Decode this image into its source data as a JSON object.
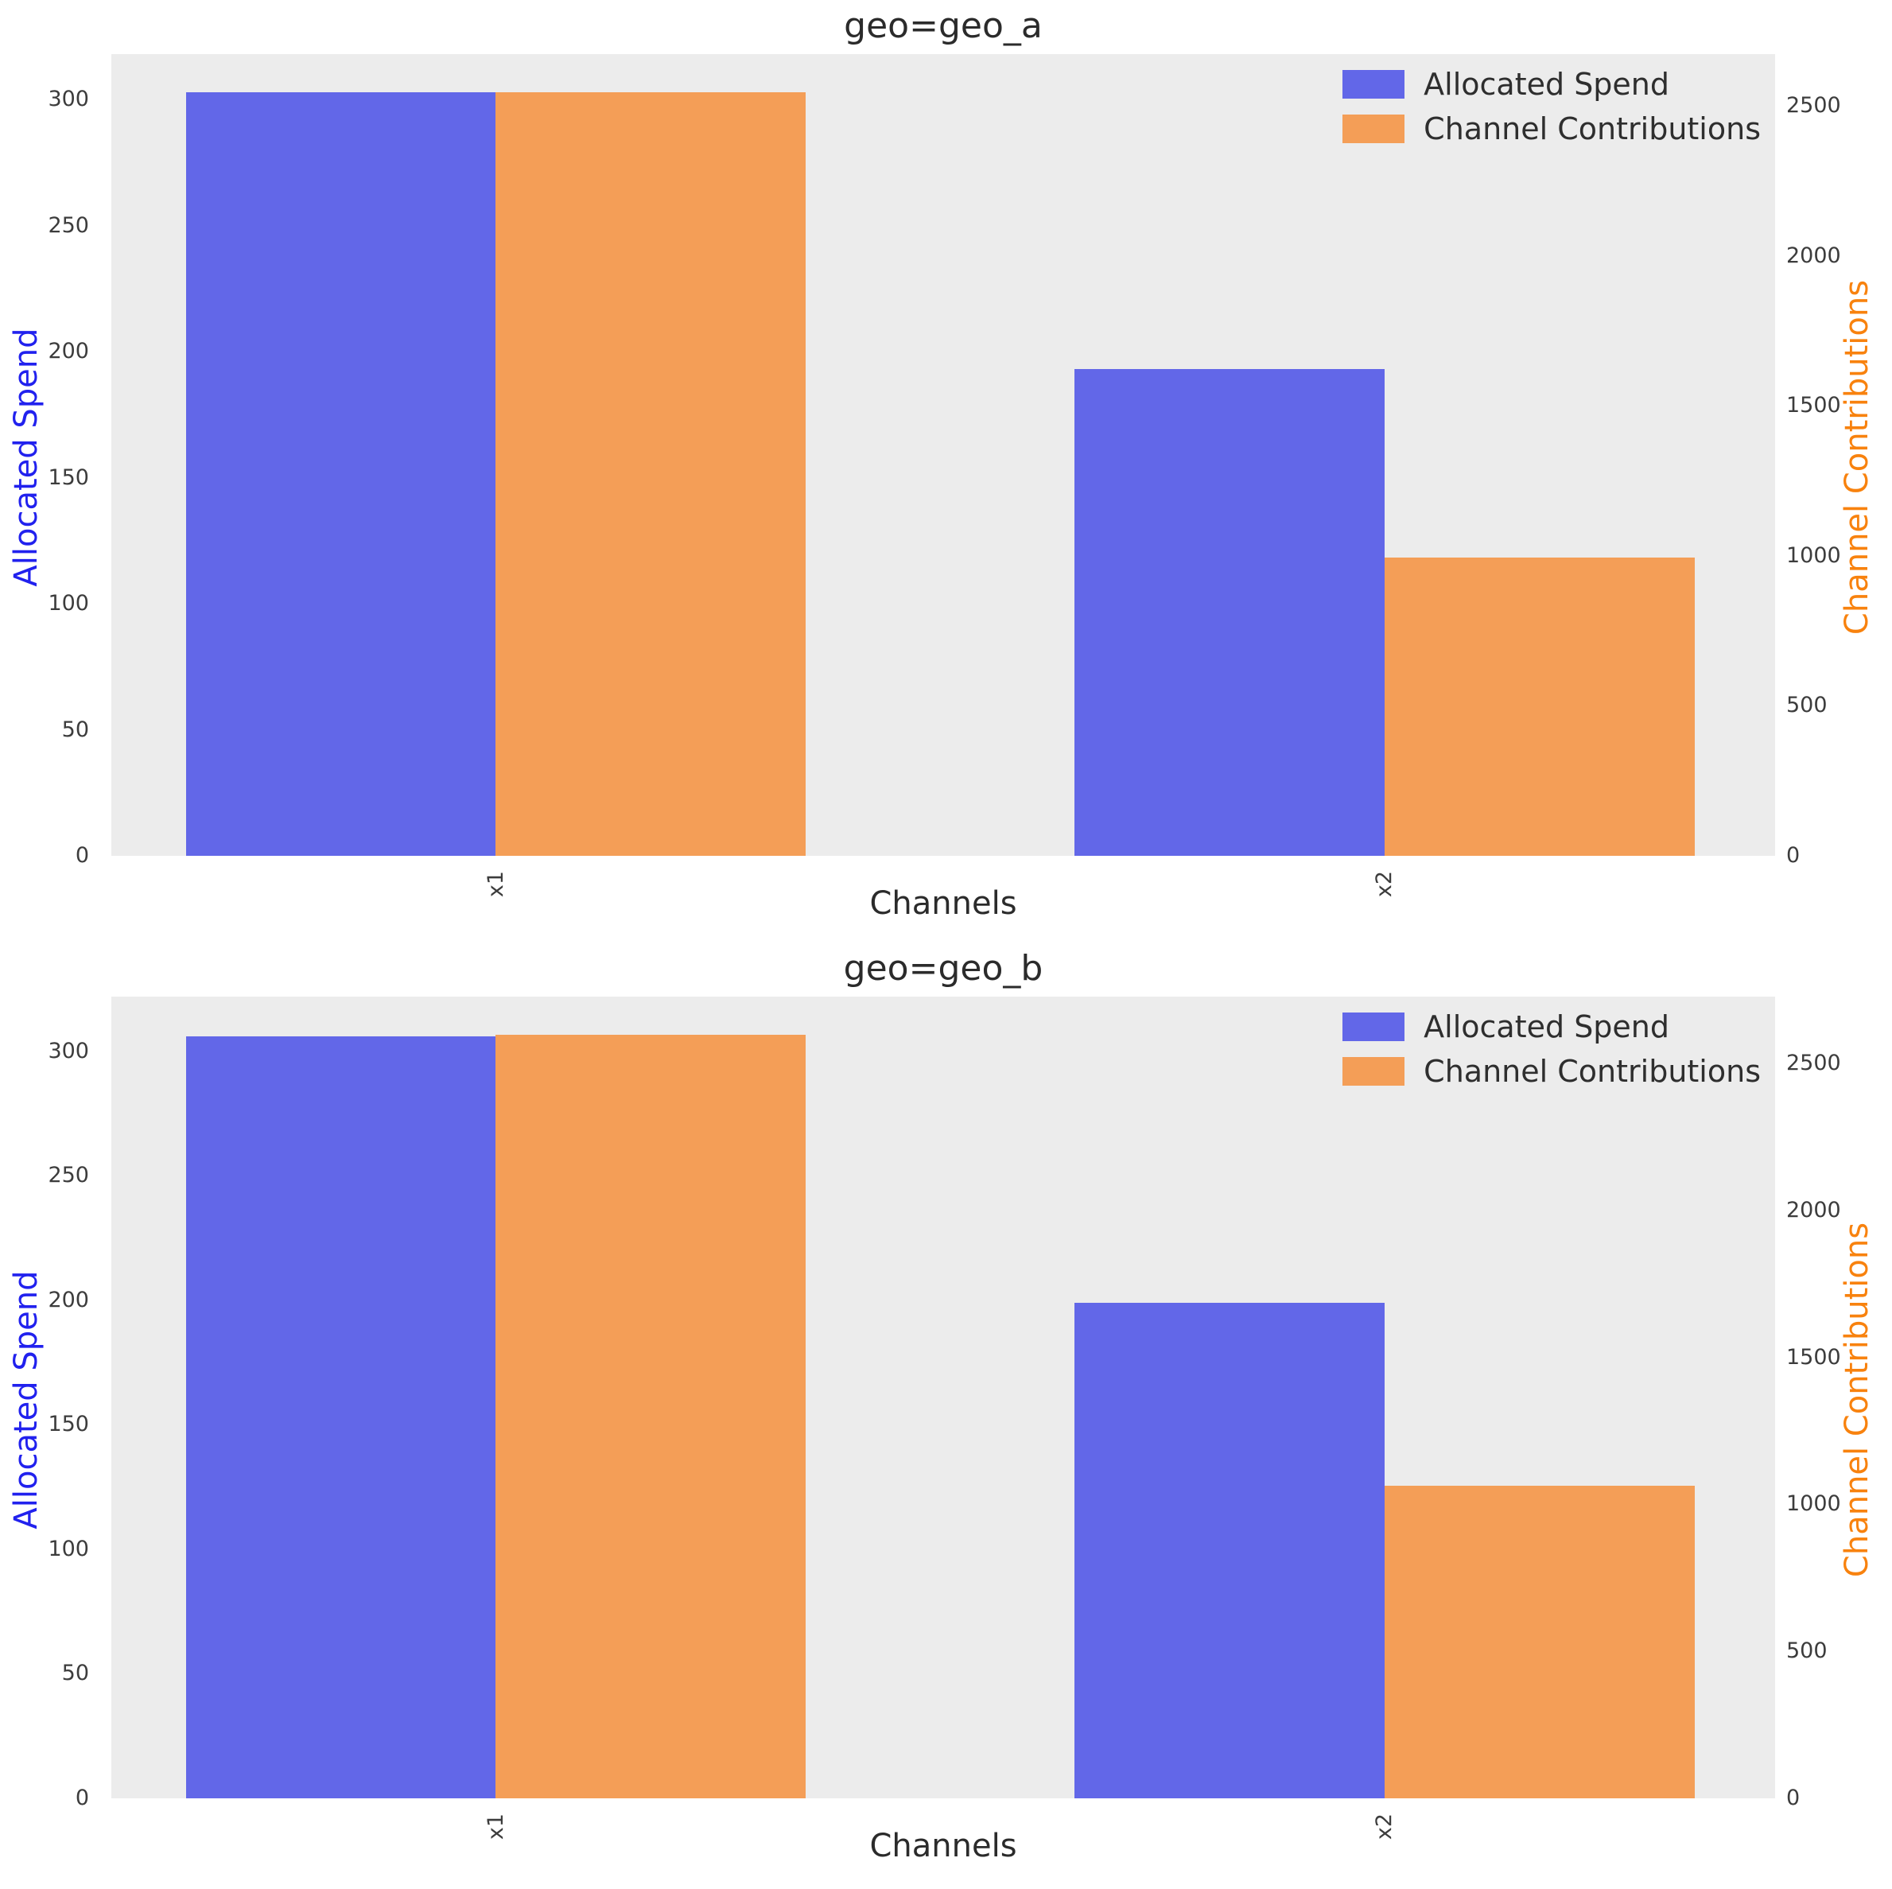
{
  "figure": {
    "background": "#ffffff",
    "plot_background": "#ececec"
  },
  "colors": {
    "spend_bar": "#6267e8",
    "contribution_bar": "#f49e57",
    "spend_axis_label": "#2121ee",
    "contribution_axis_label": "#f8820e",
    "tick_text": "#3c3c3c",
    "title_text": "#2b2b2b",
    "legend_text": "#2e2e2e"
  },
  "legend": {
    "items": [
      {
        "label": "Allocated Spend",
        "color_key": "spend_bar"
      },
      {
        "label": "Channel Contributions",
        "color_key": "contribution_bar"
      }
    ],
    "position": "upper right"
  },
  "chart_data": [
    {
      "type": "bar",
      "title": "geo=geo_a",
      "categories": [
        "x1",
        "x2"
      ],
      "series": [
        {
          "name": "Allocated Spend",
          "axis": "left",
          "values": [
            303,
            193
          ]
        },
        {
          "name": "Channel Contributions",
          "axis": "right",
          "values": [
            2546,
            995
          ]
        }
      ],
      "xlabel": "Channels",
      "ylabel_left": "Allocated Spend",
      "ylabel_right": "Channel Contributions",
      "ylim_left": [
        0,
        318
      ],
      "ylim_right": [
        0,
        2673
      ],
      "yticks_left": [
        0,
        50,
        100,
        150,
        200,
        250,
        300
      ],
      "yticks_right": [
        0,
        500,
        1000,
        1500,
        2000,
        2500
      ],
      "grid": false,
      "legend_position": "upper right",
      "x_tick_rotation": 90
    },
    {
      "type": "bar",
      "title": "geo=geo_b",
      "categories": [
        "x1",
        "x2"
      ],
      "series": [
        {
          "name": "Allocated Spend",
          "axis": "left",
          "values": [
            306,
            199
          ]
        },
        {
          "name": "Channel Contributions",
          "axis": "right",
          "values": [
            2597,
            1062
          ]
        }
      ],
      "xlabel": "Channels",
      "ylabel_left": "Allocated Spend",
      "ylabel_right": "Channel Contributions",
      "ylim_left": [
        0,
        322
      ],
      "ylim_right": [
        0,
        2727
      ],
      "yticks_left": [
        0,
        50,
        100,
        150,
        200,
        250,
        300
      ],
      "yticks_right": [
        0,
        500,
        1000,
        1500,
        2000,
        2500
      ],
      "grid": false,
      "legend_position": "upper right",
      "x_tick_rotation": 90
    }
  ]
}
